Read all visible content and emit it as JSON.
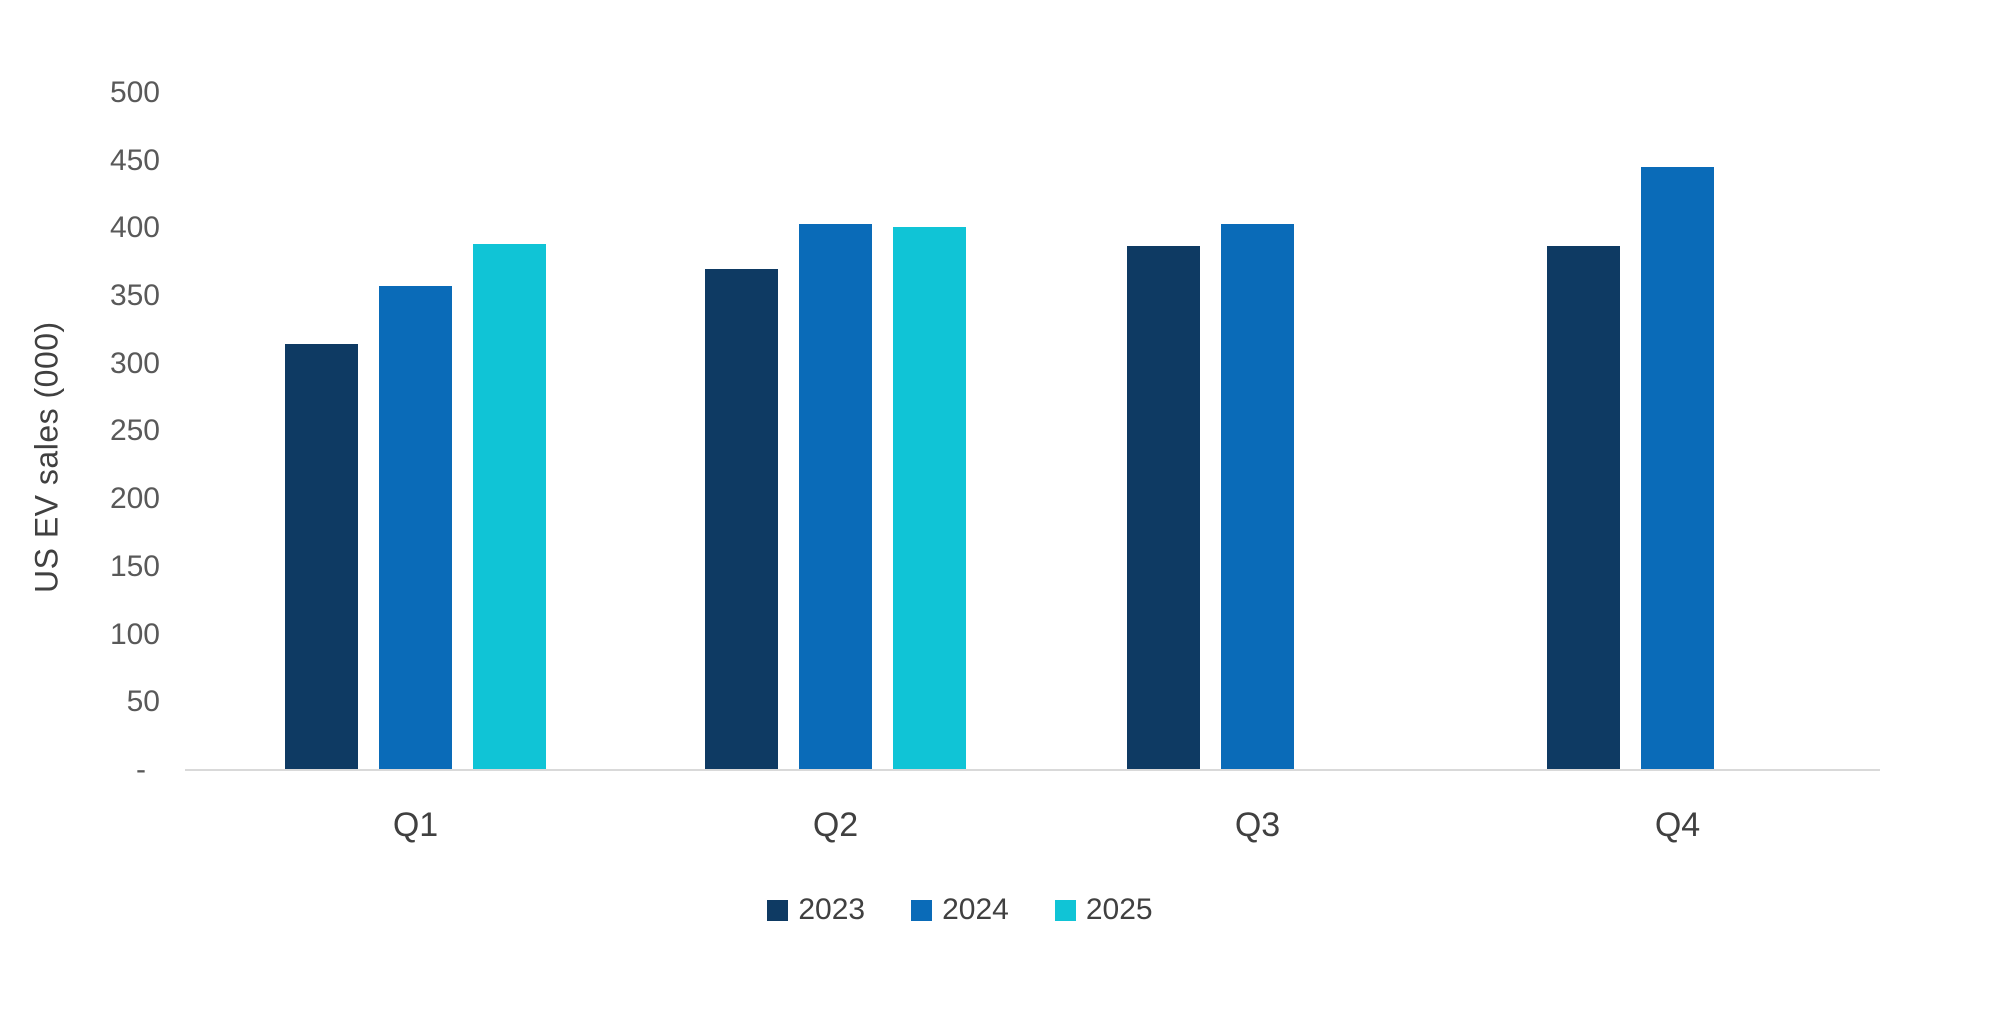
{
  "chart_data": {
    "type": "bar",
    "title": "",
    "categories": [
      "Q1",
      "Q2",
      "Q3",
      "Q4"
    ],
    "series": [
      {
        "name": "2023",
        "color": "#0e3a63",
        "values": [
          314,
          370,
          387,
          387
        ]
      },
      {
        "name": "2024",
        "color": "#0a6bb8",
        "values": [
          357,
          403,
          403,
          445
        ]
      },
      {
        "name": "2025",
        "color": "#10c4d6",
        "values": [
          388,
          401,
          null,
          null
        ]
      }
    ],
    "xlabel": "",
    "ylabel": "US EV sales (000)",
    "ylim": [
      0,
      500
    ],
    "yticks": [
      500,
      450,
      400,
      350,
      300,
      250,
      200,
      150,
      100,
      50
    ],
    "zero_label": "-",
    "grid": false,
    "legend_position": "bottom",
    "colors": {
      "axis_line": "#d9d9d9",
      "tick_text": "#595959",
      "label_text": "#404040",
      "background": "#ffffff"
    }
  }
}
